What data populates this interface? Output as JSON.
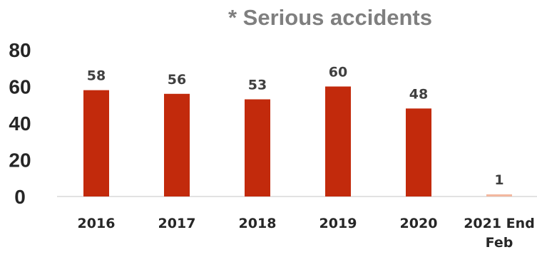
{
  "chart_data": {
    "type": "bar",
    "title": "* Serious accidents",
    "categories": [
      "2016",
      "2017",
      "2018",
      "2019",
      "2020",
      "2021 End Feb"
    ],
    "category_lines": [
      [
        "2016"
      ],
      [
        "2017"
      ],
      [
        "2018"
      ],
      [
        "2019"
      ],
      [
        "2020"
      ],
      [
        "2021 End",
        "Feb"
      ]
    ],
    "values": [
      58,
      56,
      53,
      60,
      48,
      1
    ],
    "data_labels": [
      "58",
      "56",
      "53",
      "60",
      "48",
      "1"
    ],
    "xlabel": "",
    "ylabel": "",
    "ylim": [
      0,
      80
    ],
    "yticks": [
      "0",
      "20",
      "40",
      "60",
      "80"
    ],
    "grid": false,
    "legend": "none",
    "colors": {
      "bars": "#c22a0c",
      "last_bar": "#f3b79f",
      "title": "#7f7f7f",
      "axis": "#d9d9d9"
    }
  }
}
